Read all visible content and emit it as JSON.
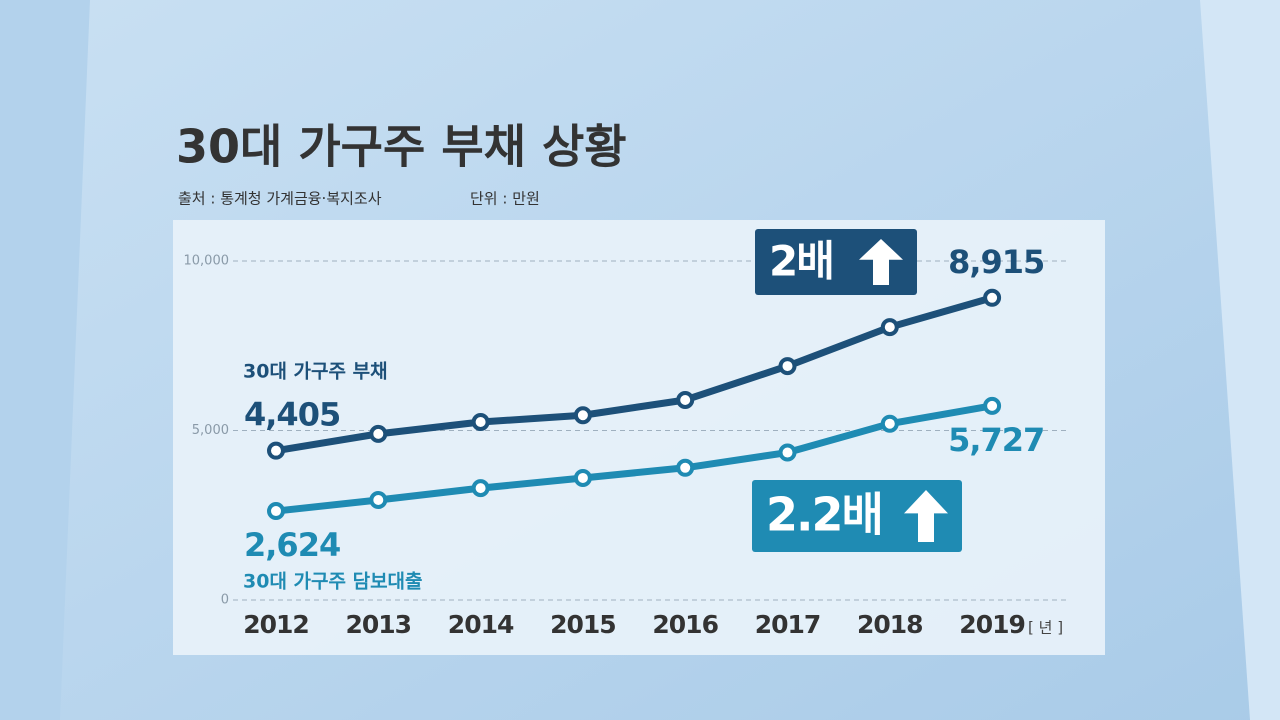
{
  "chart_data": {
    "type": "line",
    "title": "30대 가구주 부채 상황",
    "source": "출처 : 통계청 가계금융·복지조사",
    "unit": "단위 : 만원",
    "x_label": "[ 년 ]",
    "categories": [
      "2012",
      "2013",
      "2014",
      "2015",
      "2016",
      "2017",
      "2018",
      "2019"
    ],
    "series": [
      {
        "name": "30대 가구주 부채",
        "color": "#1d5079",
        "values": [
          4405,
          4900,
          5250,
          5450,
          5900,
          6900,
          8050,
          8915
        ],
        "value_labels": [
          "4,405",
          null,
          null,
          null,
          null,
          null,
          null,
          "8,915"
        ]
      },
      {
        "name": "30대 가구주 담보대출",
        "color": "#1f8bb3",
        "values": [
          2624,
          2950,
          3300,
          3600,
          3900,
          4350,
          5200,
          5727
        ],
        "value_labels": [
          "2,624",
          null,
          null,
          null,
          null,
          null,
          null,
          "5,727"
        ]
      }
    ],
    "annotations": [
      {
        "text": "2배",
        "color": "#1d5079"
      },
      {
        "text": "2.2배",
        "color": "#1f8bb3"
      }
    ],
    "ylim": [
      0,
      10000
    ],
    "yticks": [
      0,
      {
        "value": 5000,
        "label": "5,000"
      },
      {
        "value": 10000,
        "label": "10,000"
      }
    ],
    "grid": true
  }
}
